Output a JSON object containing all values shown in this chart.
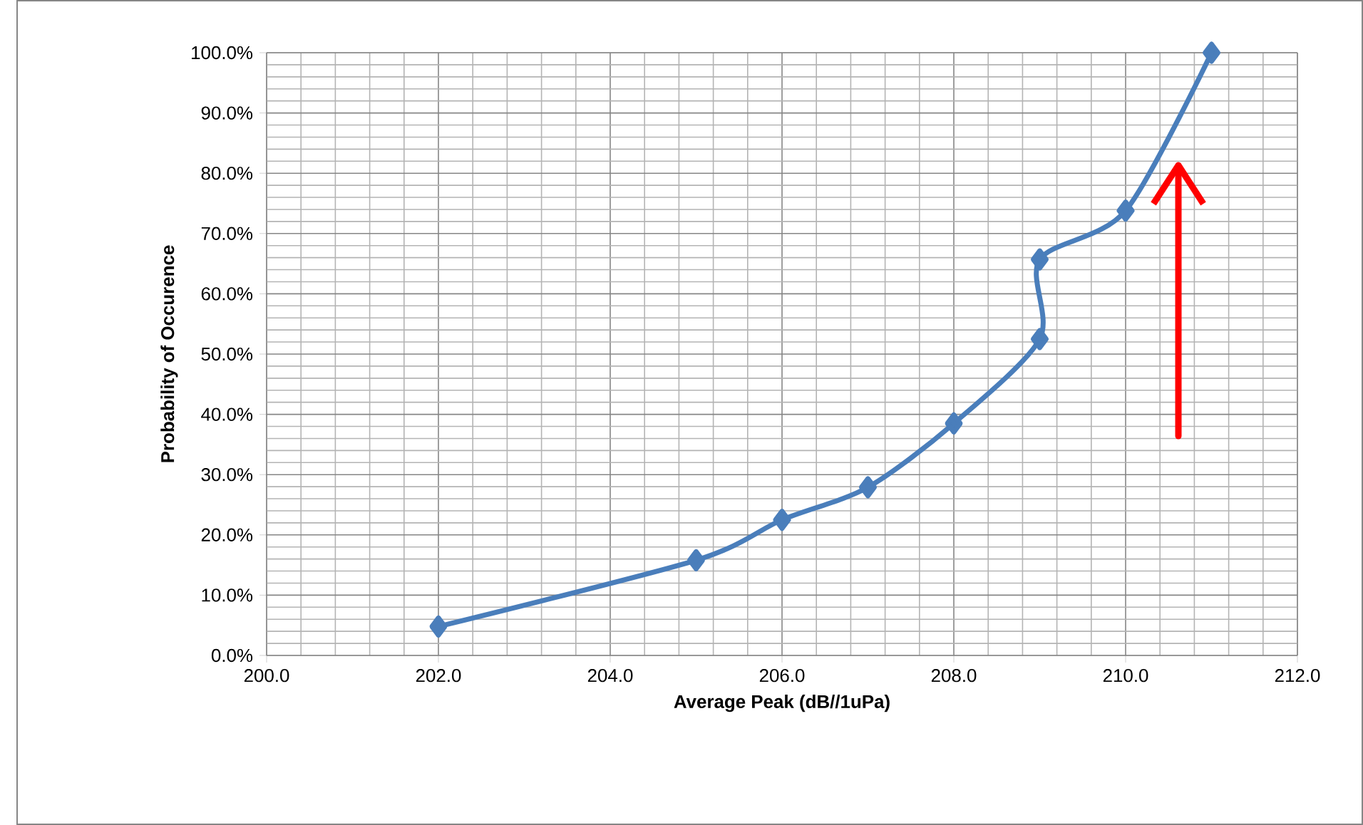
{
  "chart_data": {
    "type": "line",
    "xlabel": "Average Peak (dB//1uPa)",
    "ylabel": "Probability of Occurence",
    "x": [
      202,
      205,
      206,
      207,
      208,
      209,
      209,
      210,
      211
    ],
    "series": [
      {
        "color": "#4a7ebb",
        "values": [
          4.8,
          15.8,
          22.5,
          27.9,
          38.5,
          52.5,
          65.7,
          73.8,
          100
        ]
      }
    ],
    "xlim": [
      200,
      212
    ],
    "ylim": [
      0,
      100
    ],
    "xticks": [
      {
        "value": 200,
        "label": "200.0"
      },
      {
        "value": 202,
        "label": "202.0"
      },
      {
        "value": 204,
        "label": "204.0"
      },
      {
        "value": 206,
        "label": "206.0"
      },
      {
        "value": 208,
        "label": "208.0"
      },
      {
        "value": 210,
        "label": "210.0"
      },
      {
        "value": 212,
        "label": "212.0"
      }
    ],
    "yticks": [
      {
        "value": 0,
        "label": "0.0%"
      },
      {
        "value": 10,
        "label": "10.0%"
      },
      {
        "value": 20,
        "label": "20.0%"
      },
      {
        "value": 30,
        "label": "30.0%"
      },
      {
        "value": 40,
        "label": "40.0%"
      },
      {
        "value": 50,
        "label": "50.0%"
      },
      {
        "value": 60,
        "label": "60.0%"
      },
      {
        "value": 70,
        "label": "70.0%"
      },
      {
        "value": 80,
        "label": "80.0%"
      },
      {
        "value": 90,
        "label": "90.0%"
      },
      {
        "value": 100,
        "label": "100.0%"
      }
    ],
    "grid": true,
    "marker": "diamond",
    "line_style": "solid"
  }
}
